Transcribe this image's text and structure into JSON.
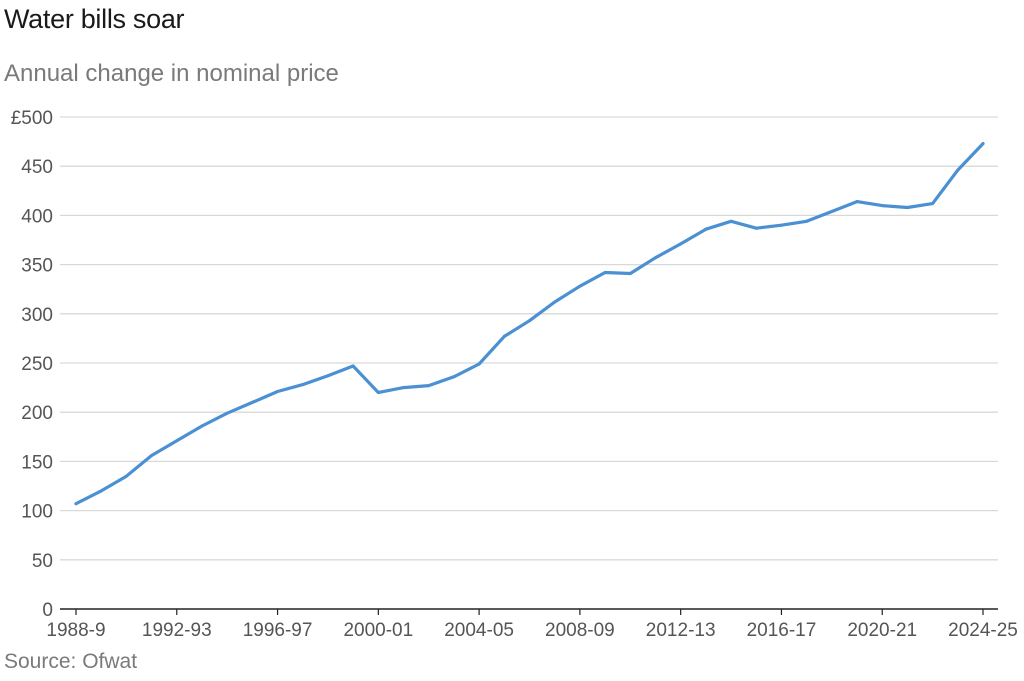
{
  "title": "Water bills soar",
  "subtitle": "Annual change in nominal price",
  "source": "Source: Ofwat",
  "colors": {
    "line": "#4a90d2",
    "grid": "#d9d9d9",
    "axis": "#222222"
  },
  "chart_data": {
    "type": "line",
    "title": "Water bills soar",
    "subtitle": "Annual change in nominal price",
    "xlabel": "",
    "ylabel": "",
    "ylim": [
      0,
      500
    ],
    "y_ticks": [
      0,
      50,
      100,
      150,
      200,
      250,
      300,
      350,
      400,
      450,
      500
    ],
    "y_tick_labels": [
      "0",
      "50",
      "100",
      "150",
      "200",
      "250",
      "300",
      "350",
      "400",
      "450",
      "£500"
    ],
    "x_tick_labels": [
      "1988-9",
      "1992-93",
      "1996-97",
      "2000-01",
      "2004-05",
      "2008-09",
      "2012-13",
      "2016-17",
      "2020-21",
      "2024-25"
    ],
    "grid": true,
    "categories": [
      "1988-9",
      "1989-90",
      "1990-91",
      "1991-92",
      "1992-93",
      "1993-94",
      "1994-95",
      "1995-96",
      "1996-97",
      "1997-98",
      "1998-99",
      "1999-00",
      "2000-01",
      "2001-02",
      "2002-03",
      "2003-04",
      "2004-05",
      "2005-06",
      "2006-07",
      "2007-08",
      "2008-09",
      "2009-10",
      "2010-11",
      "2011-12",
      "2012-13",
      "2013-14",
      "2014-15",
      "2015-16",
      "2016-17",
      "2017-18",
      "2018-19",
      "2019-20",
      "2020-21",
      "2021-22",
      "2022-23",
      "2023-24",
      "2024-25"
    ],
    "series": [
      {
        "values": [
          107,
          120,
          135,
          156,
          171,
          186,
          199,
          210,
          221,
          228,
          237,
          247,
          220,
          225,
          227,
          236,
          249,
          277,
          293,
          312,
          328,
          342,
          341,
          357,
          371,
          386,
          394,
          387,
          390,
          394,
          404,
          414,
          410,
          408,
          412,
          446,
          473
        ]
      }
    ]
  }
}
